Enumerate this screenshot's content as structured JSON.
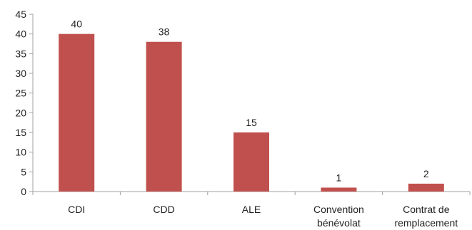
{
  "chart_data": {
    "type": "bar",
    "title": "",
    "xlabel": "",
    "ylabel": "",
    "categories": [
      [
        "CDI"
      ],
      [
        "CDD"
      ],
      [
        "ALE"
      ],
      [
        "Convention",
        "bénévolat"
      ],
      [
        "Contrat de",
        "remplacement"
      ]
    ],
    "values": [
      40,
      38,
      15,
      1,
      2
    ],
    "data_labels": [
      "40",
      "38",
      "15",
      "1",
      "2"
    ],
    "ylim": [
      0,
      45
    ],
    "yticks": [
      0,
      5,
      10,
      15,
      20,
      25,
      30,
      35,
      40,
      45
    ],
    "grid": false,
    "legend": "none",
    "colors": {
      "bar": "#c0504d",
      "axis": "#a0a0a0"
    }
  }
}
